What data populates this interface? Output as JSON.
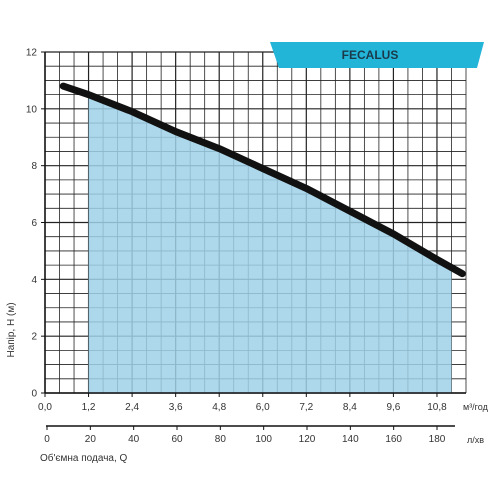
{
  "chart_data": {
    "type": "area",
    "title": "FECALUS",
    "ylabel": "Напір, Н (м)",
    "xlabel": "Об'ємна подача, Q",
    "x_unit": "м³/год",
    "x2_unit": "л/хв",
    "xlim": [
      0,
      11.6
    ],
    "ylim": [
      0,
      12
    ],
    "x_ticks": [
      "0,0",
      "1,2",
      "2,4",
      "3,6",
      "4,8",
      "6,0",
      "7,2",
      "8,4",
      "9,6",
      "10,8"
    ],
    "y_ticks": [
      "0",
      "2",
      "4",
      "6",
      "8",
      "10",
      "12"
    ],
    "x2_ticks": [
      "0",
      "20",
      "40",
      "60",
      "80",
      "100",
      "120",
      "140",
      "160",
      "180"
    ],
    "grid": true,
    "series": [
      {
        "x": [
          0.5,
          1.2,
          2.4,
          3.6,
          4.8,
          6.0,
          7.2,
          8.4,
          9.6,
          10.8,
          11.5
        ],
        "values": [
          10.8,
          10.5,
          9.9,
          9.2,
          8.6,
          7.9,
          7.2,
          6.4,
          5.6,
          4.7,
          4.2
        ]
      }
    ],
    "operating_range": [
      1.2,
      11.2
    ],
    "colors": {
      "curve": "#111111",
      "fill": "#9fd0e6",
      "grid": "#222222",
      "badge": "#22b5d8"
    }
  }
}
